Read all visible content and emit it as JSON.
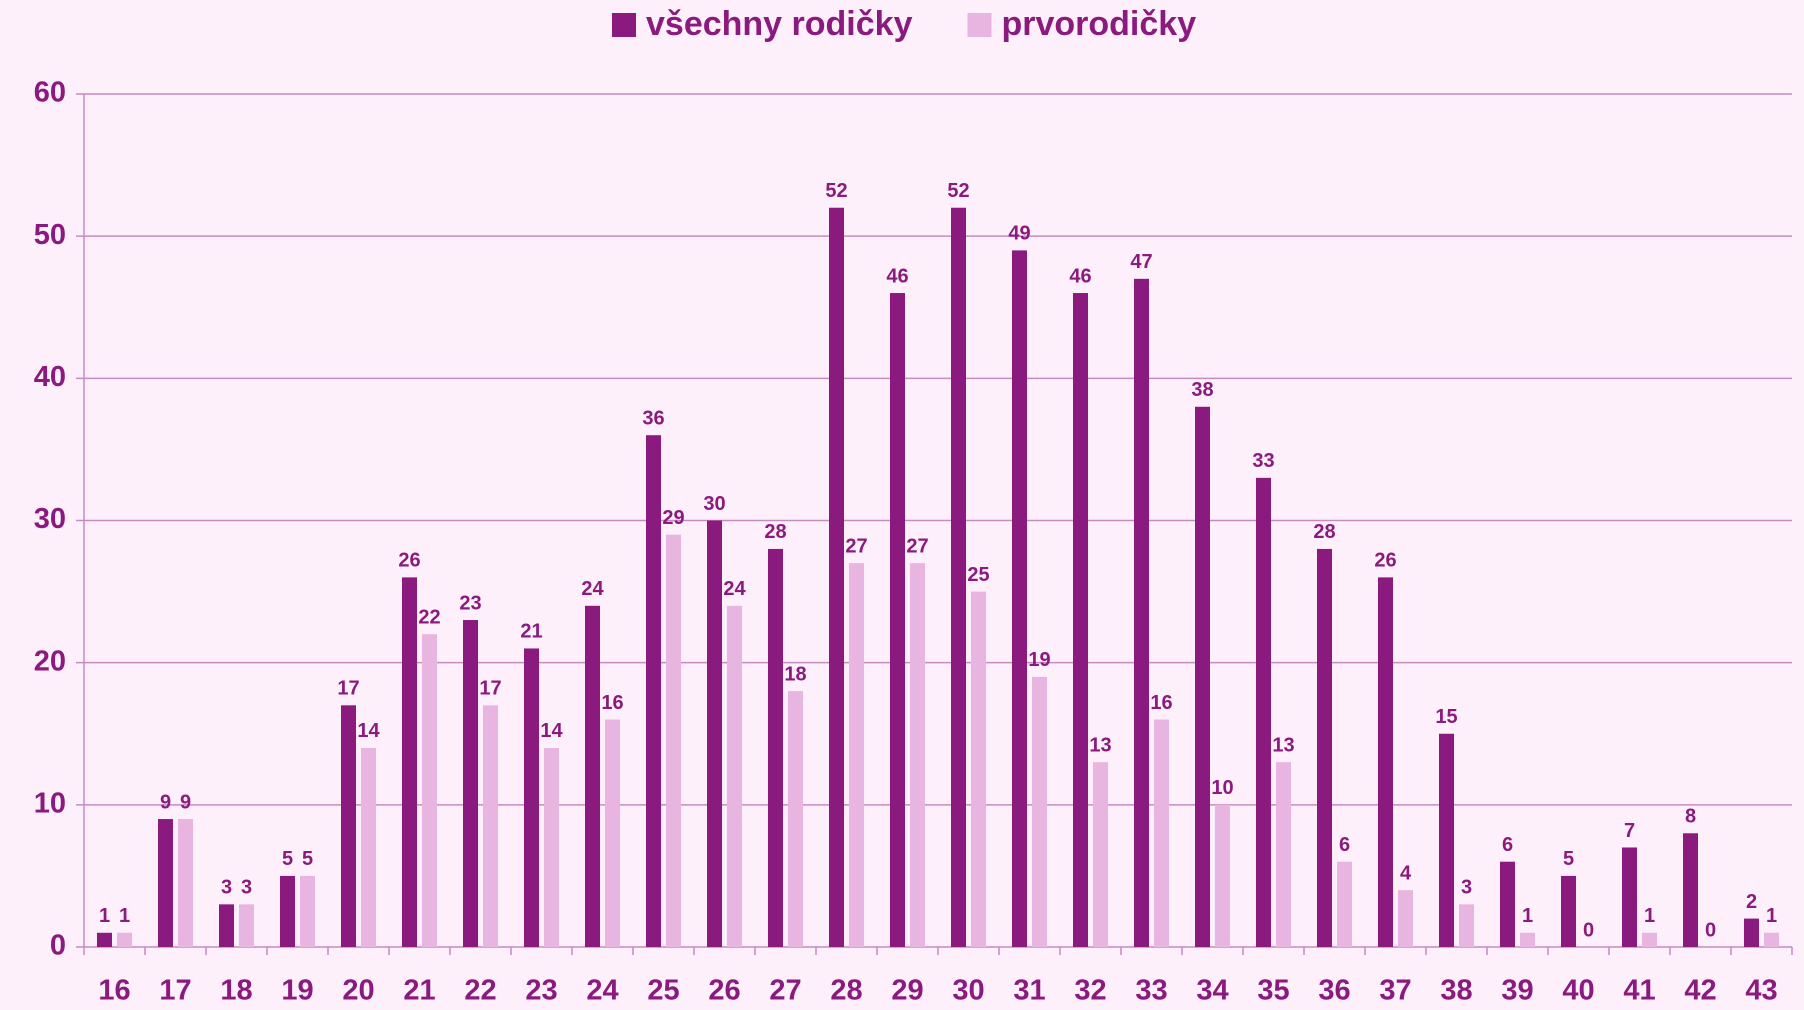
{
  "chart_data": {
    "type": "bar",
    "categories": [
      "16",
      "17",
      "18",
      "19",
      "20",
      "21",
      "22",
      "23",
      "24",
      "25",
      "26",
      "27",
      "28",
      "29",
      "30",
      "31",
      "32",
      "33",
      "34",
      "35",
      "36",
      "37",
      "38",
      "39",
      "40",
      "41",
      "42",
      "43"
    ],
    "series": [
      {
        "name": "všechny rodičky",
        "color": "#8b1a7f",
        "values": [
          1,
          9,
          3,
          5,
          17,
          26,
          23,
          21,
          24,
          36,
          30,
          28,
          52,
          46,
          52,
          49,
          46,
          47,
          38,
          33,
          28,
          26,
          15,
          6,
          5,
          7,
          8,
          2
        ]
      },
      {
        "name": "prvorodičky",
        "color": "#e8b4e0",
        "values": [
          1,
          9,
          3,
          5,
          14,
          22,
          17,
          14,
          16,
          29,
          24,
          18,
          27,
          27,
          25,
          19,
          13,
          16,
          10,
          13,
          6,
          4,
          3,
          1,
          0,
          1,
          0,
          1
        ]
      }
    ],
    "ylim": [
      0,
      60
    ],
    "yticks": [
      0,
      10,
      20,
      30,
      40,
      50,
      60
    ],
    "grid": true,
    "legend": "top"
  }
}
